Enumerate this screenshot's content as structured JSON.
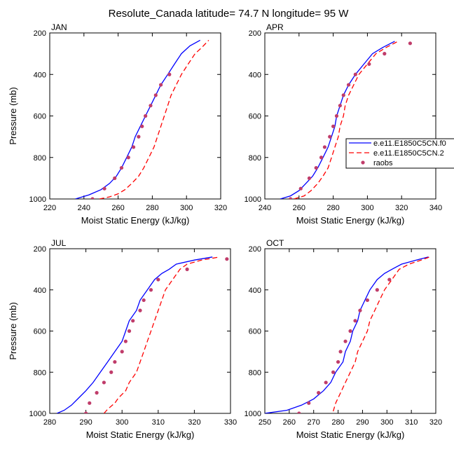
{
  "figure": {
    "title": "Resolute_Canada  latitude= 74.7 N longitude= 95 W",
    "series_colors": {
      "model_a": "#0000ff",
      "model_b": "#ff0000",
      "raobs": "#c03c6a"
    }
  },
  "legend": {
    "entries": [
      {
        "key": "model_a",
        "label": "e.e11.E1850C5CN.f0"
      },
      {
        "key": "model_b",
        "label": "e.e11.E1850C5CN.2"
      },
      {
        "key": "raobs",
        "label": "raobs"
      }
    ]
  },
  "chart_data": [
    {
      "type": "line",
      "panel": "JAN",
      "xlabel": "Moist Static Energy (kJ/kg)",
      "ylabel": "Pressure (mb)",
      "xlim": [
        220,
        320
      ],
      "ylim": [
        1000,
        200
      ],
      "xticks": [
        220,
        240,
        260,
        280,
        300,
        320
      ],
      "yticks": [
        200,
        400,
        600,
        800,
        1000
      ],
      "series": [
        {
          "key": "model_a",
          "name": "e.e11.E1850C5CN.f0",
          "style": "solid",
          "points": [
            [
              235,
              1000
            ],
            [
              243,
              980
            ],
            [
              250,
              955
            ],
            [
              255,
              925
            ],
            [
              259,
              890
            ],
            [
              262,
              850
            ],
            [
              265,
              800
            ],
            [
              268,
              750
            ],
            [
              270,
              700
            ],
            [
              273,
              650
            ],
            [
              276,
              600
            ],
            [
              279,
              550
            ],
            [
              282,
              500
            ],
            [
              285,
              450
            ],
            [
              289,
              400
            ],
            [
              293,
              350
            ],
            [
              297,
              300
            ],
            [
              302,
              262
            ],
            [
              308,
              235
            ]
          ]
        },
        {
          "key": "model_b",
          "name": "e.e11.E1850C5CN.2",
          "style": "dashed",
          "points": [
            [
              249,
              1000
            ],
            [
              255,
              990
            ],
            [
              260,
              975
            ],
            [
              264,
              955
            ],
            [
              268,
              925
            ],
            [
              272,
              890
            ],
            [
              275,
              850
            ],
            [
              278,
              800
            ],
            [
              281,
              750
            ],
            [
              283,
              700
            ],
            [
              285,
              650
            ],
            [
              287,
              600
            ],
            [
              289,
              550
            ],
            [
              291,
              500
            ],
            [
              294,
              450
            ],
            [
              297,
              400
            ],
            [
              301,
              350
            ],
            [
              305,
              300
            ],
            [
              309,
              270
            ],
            [
              313,
              235
            ]
          ]
        },
        {
          "key": "raobs",
          "name": "raobs",
          "style": "markers",
          "points": [
            [
              245,
              1000
            ],
            [
              252,
              950
            ],
            [
              258,
              900
            ],
            [
              262,
              850
            ],
            [
              266,
              800
            ],
            [
              269,
              750
            ],
            [
              272,
              700
            ],
            [
              274,
              650
            ],
            [
              276,
              600
            ],
            [
              279,
              550
            ],
            [
              282,
              500
            ],
            [
              285,
              450
            ],
            [
              290,
              400
            ]
          ]
        }
      ]
    },
    {
      "type": "line",
      "panel": "APR",
      "xlabel": "Moist Static Energy (kJ/kg)",
      "ylabel": "",
      "xlim": [
        240,
        340
      ],
      "ylim": [
        1000,
        200
      ],
      "xticks": [
        240,
        260,
        280,
        300,
        320,
        340
      ],
      "yticks": [
        200,
        400,
        600,
        800,
        1000
      ],
      "series": [
        {
          "key": "model_a",
          "name": "e.e11.E1850C5CN.f0",
          "style": "solid",
          "points": [
            [
              249,
              1000
            ],
            [
              255,
              985
            ],
            [
              260,
              960
            ],
            [
              264,
              925
            ],
            [
              268,
              890
            ],
            [
              271,
              850
            ],
            [
              274,
              800
            ],
            [
              277,
              750
            ],
            [
              279,
              700
            ],
            [
              281,
              650
            ],
            [
              282,
              600
            ],
            [
              284,
              550
            ],
            [
              286,
              500
            ],
            [
              289,
              450
            ],
            [
              293,
              400
            ],
            [
              298,
              350
            ],
            [
              303,
              300
            ],
            [
              309,
              270
            ],
            [
              316,
              240
            ]
          ]
        },
        {
          "key": "model_b",
          "name": "e.e11.E1850C5CN.2",
          "style": "dashed",
          "points": [
            [
              257,
              1000
            ],
            [
              263,
              985
            ],
            [
              267,
              960
            ],
            [
              271,
              925
            ],
            [
              274,
              890
            ],
            [
              277,
              850
            ],
            [
              279,
              800
            ],
            [
              281,
              750
            ],
            [
              283,
              700
            ],
            [
              284,
              650
            ],
            [
              286,
              600
            ],
            [
              287,
              550
            ],
            [
              289,
              500
            ],
            [
              292,
              450
            ],
            [
              295,
              400
            ],
            [
              300,
              350
            ],
            [
              305,
              300
            ],
            [
              311,
              270
            ],
            [
              318,
              240
            ]
          ]
        },
        {
          "key": "raobs",
          "name": "raobs",
          "style": "markers",
          "points": [
            [
              255,
              1000
            ],
            [
              261,
              950
            ],
            [
              266,
              900
            ],
            [
              270,
              850
            ],
            [
              273,
              800
            ],
            [
              275,
              750
            ],
            [
              278,
              700
            ],
            [
              280,
              650
            ],
            [
              282,
              600
            ],
            [
              284,
              550
            ],
            [
              286,
              500
            ],
            [
              289,
              450
            ],
            [
              293,
              400
            ],
            [
              301,
              350
            ],
            [
              310,
              300
            ],
            [
              325,
              250
            ]
          ]
        }
      ]
    },
    {
      "type": "line",
      "panel": "JUL",
      "xlabel": "Moist Static Energy (kJ/kg)",
      "ylabel": "Pressure (mb)",
      "xlim": [
        280,
        330
      ],
      "ylim": [
        1000,
        200
      ],
      "xticks": [
        280,
        290,
        300,
        310,
        320,
        330
      ],
      "yticks": [
        200,
        400,
        600,
        800,
        1000
      ],
      "series": [
        {
          "key": "model_a",
          "name": "e.e11.E1850C5CN.f0",
          "style": "solid",
          "points": [
            [
              282,
              1000
            ],
            [
              284,
              985
            ],
            [
              286,
              960
            ],
            [
              288,
              925
            ],
            [
              290,
              890
            ],
            [
              292,
              850
            ],
            [
              294,
              800
            ],
            [
              296,
              750
            ],
            [
              298,
              700
            ],
            [
              300,
              650
            ],
            [
              301,
              600
            ],
            [
              302,
              550
            ],
            [
              304,
              500
            ],
            [
              305,
              450
            ],
            [
              307,
              400
            ],
            [
              309,
              350
            ],
            [
              311,
              320
            ],
            [
              313,
              300
            ],
            [
              315,
              275
            ],
            [
              320,
              255
            ],
            [
              325,
              240
            ]
          ]
        },
        {
          "key": "model_b",
          "name": "e.e11.E1850C5CN.2",
          "style": "dashed",
          "points": [
            [
              295,
              1000
            ],
            [
              296,
              980
            ],
            [
              298,
              950
            ],
            [
              299,
              925
            ],
            [
              301,
              890
            ],
            [
              302,
              850
            ],
            [
              304,
              800
            ],
            [
              305,
              750
            ],
            [
              306,
              700
            ],
            [
              307,
              650
            ],
            [
              308,
              600
            ],
            [
              309,
              550
            ],
            [
              310,
              500
            ],
            [
              311,
              450
            ],
            [
              312,
              400
            ],
            [
              314,
              350
            ],
            [
              316,
              300
            ],
            [
              318,
              275
            ],
            [
              322,
              255
            ],
            [
              327,
              240
            ]
          ]
        },
        {
          "key": "raobs",
          "name": "raobs",
          "style": "markers",
          "points": [
            [
              290,
              1000
            ],
            [
              291,
              950
            ],
            [
              293,
              900
            ],
            [
              295,
              850
            ],
            [
              297,
              800
            ],
            [
              298,
              750
            ],
            [
              300,
              700
            ],
            [
              301,
              650
            ],
            [
              302,
              600
            ],
            [
              303,
              550
            ],
            [
              305,
              500
            ],
            [
              306,
              450
            ],
            [
              308,
              400
            ],
            [
              310,
              350
            ],
            [
              318,
              300
            ],
            [
              329,
              250
            ]
          ]
        }
      ]
    },
    {
      "type": "line",
      "panel": "OCT",
      "xlabel": "Moist Static Energy (kJ/kg)",
      "ylabel": "",
      "xlim": [
        250,
        320
      ],
      "ylim": [
        1000,
        200
      ],
      "xticks": [
        250,
        260,
        270,
        280,
        290,
        300,
        310,
        320
      ],
      "yticks": [
        200,
        400,
        600,
        800,
        1000
      ],
      "series": [
        {
          "key": "model_a",
          "name": "e.e11.E1850C5CN.f0",
          "style": "solid",
          "points": [
            [
              250,
              1000
            ],
            [
              259,
              985
            ],
            [
              265,
              960
            ],
            [
              270,
              930
            ],
            [
              274,
              890
            ],
            [
              277,
              850
            ],
            [
              279,
              800
            ],
            [
              282,
              750
            ],
            [
              283,
              700
            ],
            [
              285,
              650
            ],
            [
              286,
              600
            ],
            [
              288,
              550
            ],
            [
              289,
              500
            ],
            [
              291,
              450
            ],
            [
              293,
              400
            ],
            [
              296,
              350
            ],
            [
              299,
              320
            ],
            [
              302,
              300
            ],
            [
              306,
              275
            ],
            [
              312,
              255
            ],
            [
              317,
              240
            ]
          ]
        },
        {
          "key": "model_b",
          "name": "e.e11.E1850C5CN.2",
          "style": "dashed",
          "points": [
            [
              278,
              990
            ],
            [
              279,
              950
            ],
            [
              281,
              900
            ],
            [
              283,
              850
            ],
            [
              285,
              800
            ],
            [
              287,
              750
            ],
            [
              288,
              700
            ],
            [
              290,
              650
            ],
            [
              292,
              600
            ],
            [
              293,
              550
            ],
            [
              295,
              500
            ],
            [
              297,
              450
            ],
            [
              299,
              400
            ],
            [
              302,
              350
            ],
            [
              305,
              300
            ],
            [
              309,
              275
            ],
            [
              314,
              255
            ],
            [
              318,
              238
            ]
          ]
        },
        {
          "key": "raobs",
          "name": "raobs",
          "style": "markers",
          "points": [
            [
              264,
              1000
            ],
            [
              268,
              950
            ],
            [
              272,
              900
            ],
            [
              275,
              850
            ],
            [
              278,
              800
            ],
            [
              280,
              750
            ],
            [
              281,
              700
            ],
            [
              283,
              650
            ],
            [
              285,
              600
            ],
            [
              287,
              550
            ],
            [
              289,
              500
            ],
            [
              292,
              450
            ],
            [
              296,
              400
            ],
            [
              301,
              350
            ]
          ]
        }
      ]
    }
  ]
}
